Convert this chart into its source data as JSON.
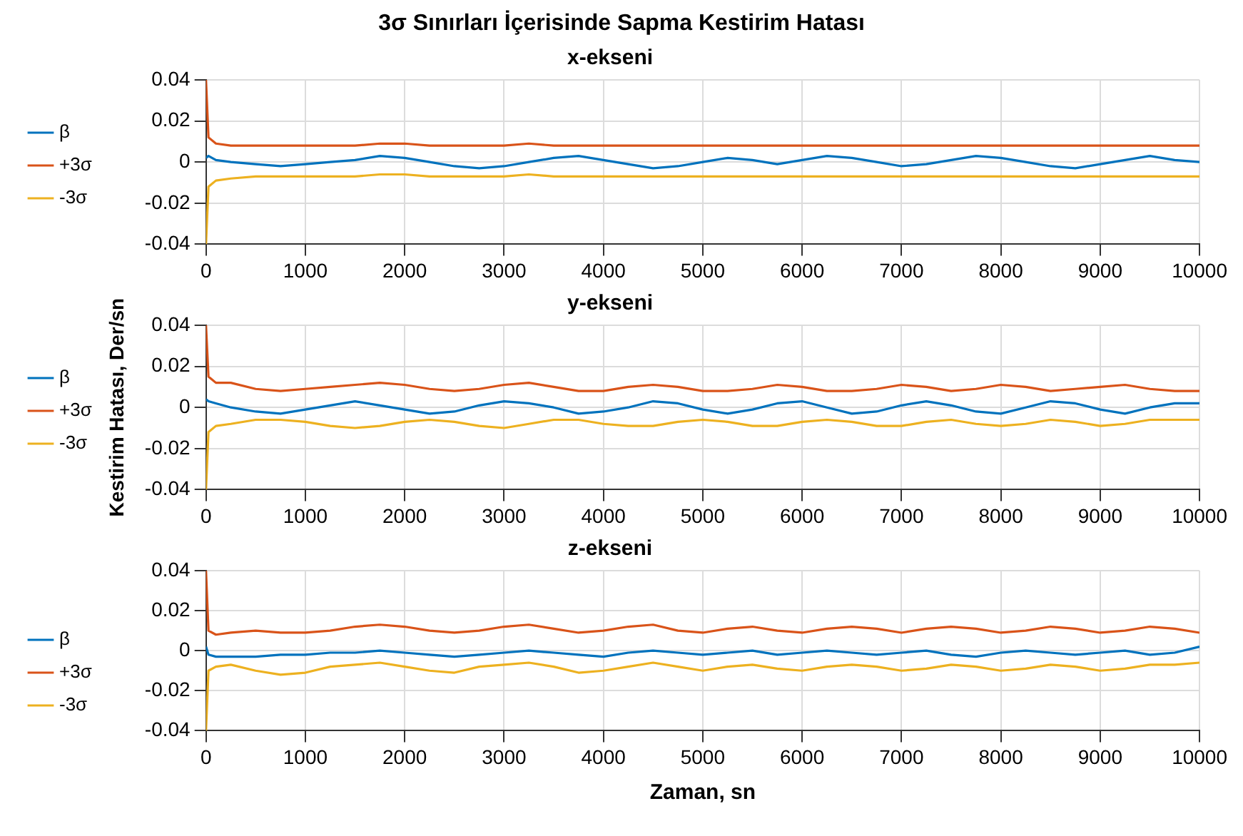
{
  "chart_data": [
    {
      "type": "line",
      "title": "x-ekseni",
      "annotations": [
        "3σ Sınırları İçerisinde Sapma Kestirim Hatası"
      ],
      "x": [
        0,
        25,
        100,
        250,
        500,
        750,
        1000,
        1250,
        1500,
        1750,
        2000,
        2250,
        2500,
        2750,
        3000,
        3250,
        3500,
        3750,
        4000,
        4250,
        4500,
        4750,
        5000,
        5250,
        5500,
        5750,
        6000,
        6250,
        6500,
        6750,
        7000,
        7250,
        7500,
        7750,
        8000,
        8250,
        8500,
        8750,
        9000,
        9250,
        9500,
        9750,
        10000
      ],
      "series": [
        {
          "name": "β",
          "color": "#0072bd",
          "values": [
            0.002,
            0.003,
            0.001,
            0,
            -0.001,
            -0.002,
            -0.001,
            0,
            0.001,
            0.003,
            0.002,
            0,
            -0.002,
            -0.003,
            -0.002,
            0,
            0.002,
            0.003,
            0.001,
            -0.001,
            -0.003,
            -0.002,
            0,
            0.002,
            0.001,
            -0.001,
            0.001,
            0.003,
            0.002,
            0,
            -0.002,
            -0.001,
            0.001,
            0.003,
            0.002,
            0,
            -0.002,
            -0.003,
            -0.001,
            0.001,
            0.003,
            0.001,
            0
          ]
        },
        {
          "name": "+3σ",
          "color": "#d95319",
          "values": [
            0.04,
            0.012,
            0.009,
            0.008,
            0.008,
            0.008,
            0.008,
            0.008,
            0.008,
            0.009,
            0.009,
            0.008,
            0.008,
            0.008,
            0.008,
            0.009,
            0.008,
            0.008,
            0.008,
            0.008,
            0.008,
            0.008,
            0.008,
            0.008,
            0.008,
            0.008,
            0.008,
            0.008,
            0.008,
            0.008,
            0.008,
            0.008,
            0.008,
            0.008,
            0.008,
            0.008,
            0.008,
            0.008,
            0.008,
            0.008,
            0.008,
            0.008,
            0.008
          ]
        },
        {
          "name": "-3σ",
          "color": "#edb120",
          "values": [
            -0.04,
            -0.012,
            -0.009,
            -0.008,
            -0.007,
            -0.007,
            -0.007,
            -0.007,
            -0.007,
            -0.006,
            -0.006,
            -0.007,
            -0.007,
            -0.007,
            -0.007,
            -0.006,
            -0.007,
            -0.007,
            -0.007,
            -0.007,
            -0.007,
            -0.007,
            -0.007,
            -0.007,
            -0.007,
            -0.007,
            -0.007,
            -0.007,
            -0.007,
            -0.007,
            -0.007,
            -0.007,
            -0.007,
            -0.007,
            -0.007,
            -0.007,
            -0.007,
            -0.007,
            -0.007,
            -0.007,
            -0.007,
            -0.007,
            -0.007
          ]
        }
      ],
      "xlim": [
        0,
        10000
      ],
      "xticks": [
        0,
        1000,
        2000,
        3000,
        4000,
        5000,
        6000,
        7000,
        8000,
        9000,
        10000
      ],
      "ylim": [
        -0.04,
        0.04
      ],
      "yticks": [
        -0.04,
        -0.02,
        0,
        0.02,
        0.04
      ],
      "grid": true,
      "legend": "left"
    },
    {
      "type": "line",
      "title": "y-ekseni",
      "ylabel": "Kestirim Hatası, Der/sn",
      "x": [
        0,
        25,
        100,
        250,
        500,
        750,
        1000,
        1250,
        1500,
        1750,
        2000,
        2250,
        2500,
        2750,
        3000,
        3250,
        3500,
        3750,
        4000,
        4250,
        4500,
        4750,
        5000,
        5250,
        5500,
        5750,
        6000,
        6250,
        6500,
        6750,
        7000,
        7250,
        7500,
        7750,
        8000,
        8250,
        8500,
        8750,
        9000,
        9250,
        9500,
        9750,
        10000
      ],
      "series": [
        {
          "name": "β",
          "color": "#0072bd",
          "values": [
            0.004,
            0.003,
            0.002,
            0,
            -0.002,
            -0.003,
            -0.001,
            0.001,
            0.003,
            0.001,
            -0.001,
            -0.003,
            -0.002,
            0.001,
            0.003,
            0.002,
            0,
            -0.003,
            -0.002,
            0,
            0.003,
            0.002,
            -0.001,
            -0.003,
            -0.001,
            0.002,
            0.003,
            0,
            -0.003,
            -0.002,
            0.001,
            0.003,
            0.001,
            -0.002,
            -0.003,
            0,
            0.003,
            0.002,
            -0.001,
            -0.003,
            0,
            0.002,
            0.002
          ]
        },
        {
          "name": "+3σ",
          "color": "#d95319",
          "values": [
            0.04,
            0.015,
            0.012,
            0.012,
            0.009,
            0.008,
            0.009,
            0.01,
            0.011,
            0.012,
            0.011,
            0.009,
            0.008,
            0.009,
            0.011,
            0.012,
            0.01,
            0.008,
            0.008,
            0.01,
            0.011,
            0.01,
            0.008,
            0.008,
            0.009,
            0.011,
            0.01,
            0.008,
            0.008,
            0.009,
            0.011,
            0.01,
            0.008,
            0.009,
            0.011,
            0.01,
            0.008,
            0.009,
            0.01,
            0.011,
            0.009,
            0.008,
            0.008
          ]
        },
        {
          "name": "-3σ",
          "color": "#edb120",
          "values": [
            -0.04,
            -0.012,
            -0.009,
            -0.008,
            -0.006,
            -0.006,
            -0.007,
            -0.009,
            -0.01,
            -0.009,
            -0.007,
            -0.006,
            -0.007,
            -0.009,
            -0.01,
            -0.008,
            -0.006,
            -0.006,
            -0.008,
            -0.009,
            -0.009,
            -0.007,
            -0.006,
            -0.007,
            -0.009,
            -0.009,
            -0.007,
            -0.006,
            -0.007,
            -0.009,
            -0.009,
            -0.007,
            -0.006,
            -0.008,
            -0.009,
            -0.008,
            -0.006,
            -0.007,
            -0.009,
            -0.008,
            -0.006,
            -0.006,
            -0.006
          ]
        }
      ],
      "xlim": [
        0,
        10000
      ],
      "xticks": [
        0,
        1000,
        2000,
        3000,
        4000,
        5000,
        6000,
        7000,
        8000,
        9000,
        10000
      ],
      "ylim": [
        -0.04,
        0.04
      ],
      "yticks": [
        -0.04,
        -0.02,
        0,
        0.02,
        0.04
      ],
      "grid": true,
      "legend": "left"
    },
    {
      "type": "line",
      "title": "z-ekseni",
      "xlabel": "Zaman, sn",
      "x": [
        0,
        25,
        100,
        250,
        500,
        750,
        1000,
        1250,
        1500,
        1750,
        2000,
        2250,
        2500,
        2750,
        3000,
        3250,
        3500,
        3750,
        4000,
        4250,
        4500,
        4750,
        5000,
        5250,
        5500,
        5750,
        6000,
        6250,
        6500,
        6750,
        7000,
        7250,
        7500,
        7750,
        8000,
        8250,
        8500,
        8750,
        9000,
        9250,
        9500,
        9750,
        10000
      ],
      "series": [
        {
          "name": "β",
          "color": "#0072bd",
          "values": [
            0.002,
            -0.002,
            -0.003,
            -0.003,
            -0.003,
            -0.002,
            -0.002,
            -0.001,
            -0.001,
            0,
            -0.001,
            -0.002,
            -0.003,
            -0.002,
            -0.001,
            0,
            -0.001,
            -0.002,
            -0.003,
            -0.001,
            0,
            -0.001,
            -0.002,
            -0.001,
            0,
            -0.002,
            -0.001,
            0,
            -0.001,
            -0.002,
            -0.001,
            0,
            -0.002,
            -0.003,
            -0.001,
            0,
            -0.001,
            -0.002,
            -0.001,
            0,
            -0.002,
            -0.001,
            0.002
          ]
        },
        {
          "name": "+3σ",
          "color": "#d95319",
          "values": [
            0.04,
            0.01,
            0.008,
            0.009,
            0.01,
            0.009,
            0.009,
            0.01,
            0.012,
            0.013,
            0.012,
            0.01,
            0.009,
            0.01,
            0.012,
            0.013,
            0.011,
            0.009,
            0.01,
            0.012,
            0.013,
            0.01,
            0.009,
            0.011,
            0.012,
            0.01,
            0.009,
            0.011,
            0.012,
            0.011,
            0.009,
            0.011,
            0.012,
            0.011,
            0.009,
            0.01,
            0.012,
            0.011,
            0.009,
            0.01,
            0.012,
            0.011,
            0.009
          ]
        },
        {
          "name": "-3σ",
          "color": "#edb120",
          "values": [
            -0.04,
            -0.01,
            -0.008,
            -0.007,
            -0.01,
            -0.012,
            -0.011,
            -0.008,
            -0.007,
            -0.006,
            -0.008,
            -0.01,
            -0.011,
            -0.008,
            -0.007,
            -0.006,
            -0.008,
            -0.011,
            -0.01,
            -0.008,
            -0.006,
            -0.008,
            -0.01,
            -0.008,
            -0.007,
            -0.009,
            -0.01,
            -0.008,
            -0.007,
            -0.008,
            -0.01,
            -0.009,
            -0.007,
            -0.008,
            -0.01,
            -0.009,
            -0.007,
            -0.008,
            -0.01,
            -0.009,
            -0.007,
            -0.007,
            -0.006
          ]
        }
      ],
      "xlim": [
        0,
        10000
      ],
      "xticks": [
        0,
        1000,
        2000,
        3000,
        4000,
        5000,
        6000,
        7000,
        8000,
        9000,
        10000
      ],
      "ylim": [
        -0.04,
        0.04
      ],
      "yticks": [
        -0.04,
        -0.02,
        0,
        0.02,
        0.04
      ],
      "grid": true,
      "legend": "left"
    }
  ]
}
